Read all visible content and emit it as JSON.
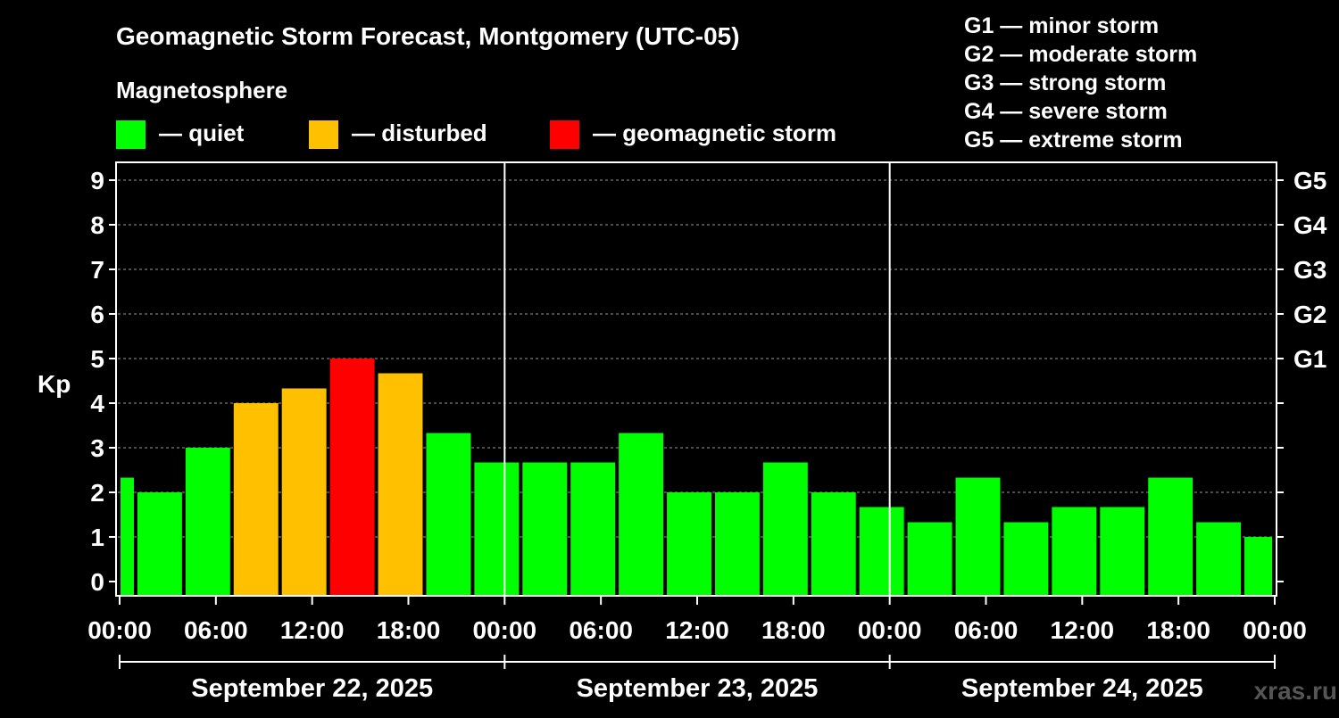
{
  "chart_data": {
    "type": "bar",
    "title": "Geomagnetic Storm Forecast, Montgomery (UTC-05)",
    "legend_title": "Magnetosphere",
    "legend": [
      {
        "label": "— quiet",
        "color": "#00ff00"
      },
      {
        "label": "— disturbed",
        "color": "#ffc000"
      },
      {
        "label": "— geomagnetic storm",
        "color": "#ff0000"
      }
    ],
    "storm_scale": [
      "G1 — minor storm",
      "G2 — moderate storm",
      "G3 — strong storm",
      "G4 — severe storm",
      "G5 — extreme storm"
    ],
    "ylabel": "Kp",
    "ylim": [
      0,
      9
    ],
    "y_ticks": [
      "0",
      "1",
      "2",
      "3",
      "4",
      "5",
      "6",
      "7",
      "8",
      "9"
    ],
    "right_ticks": [
      {
        "value": 5,
        "label": "G1"
      },
      {
        "value": 6,
        "label": "G2"
      },
      {
        "value": 7,
        "label": "G3"
      },
      {
        "value": 8,
        "label": "G4"
      },
      {
        "value": 9,
        "label": "G5"
      }
    ],
    "x_range_hours": [
      0,
      72
    ],
    "x_ticks": [
      "00:00",
      "06:00",
      "12:00",
      "18:00",
      "00:00",
      "06:00",
      "12:00",
      "18:00",
      "00:00",
      "06:00",
      "12:00",
      "18:00",
      "00:00"
    ],
    "days": [
      "September 22, 2025",
      "September 23, 2025",
      "September 24, 2025"
    ],
    "grid": "dashed horizontal at each Kp level",
    "bars": [
      {
        "start": 0,
        "end": 1,
        "kp": 2.33,
        "color": "#00ff00"
      },
      {
        "start": 1,
        "end": 4,
        "kp": 2.0,
        "color": "#00ff00"
      },
      {
        "start": 4,
        "end": 7,
        "kp": 3.0,
        "color": "#00ff00"
      },
      {
        "start": 7,
        "end": 10,
        "kp": 4.0,
        "color": "#ffc000"
      },
      {
        "start": 10,
        "end": 13,
        "kp": 4.33,
        "color": "#ffc000"
      },
      {
        "start": 13,
        "end": 16,
        "kp": 5.0,
        "color": "#ff0000"
      },
      {
        "start": 16,
        "end": 19,
        "kp": 4.67,
        "color": "#ffc000"
      },
      {
        "start": 19,
        "end": 22,
        "kp": 3.33,
        "color": "#00ff00"
      },
      {
        "start": 22,
        "end": 25,
        "kp": 2.67,
        "color": "#00ff00"
      },
      {
        "start": 25,
        "end": 28,
        "kp": 2.67,
        "color": "#00ff00"
      },
      {
        "start": 28,
        "end": 31,
        "kp": 2.67,
        "color": "#00ff00"
      },
      {
        "start": 31,
        "end": 34,
        "kp": 3.33,
        "color": "#00ff00"
      },
      {
        "start": 34,
        "end": 37,
        "kp": 2.0,
        "color": "#00ff00"
      },
      {
        "start": 37,
        "end": 40,
        "kp": 2.0,
        "color": "#00ff00"
      },
      {
        "start": 40,
        "end": 43,
        "kp": 2.67,
        "color": "#00ff00"
      },
      {
        "start": 43,
        "end": 46,
        "kp": 2.0,
        "color": "#00ff00"
      },
      {
        "start": 46,
        "end": 49,
        "kp": 1.67,
        "color": "#00ff00"
      },
      {
        "start": 49,
        "end": 52,
        "kp": 1.33,
        "color": "#00ff00"
      },
      {
        "start": 52,
        "end": 55,
        "kp": 2.33,
        "color": "#00ff00"
      },
      {
        "start": 55,
        "end": 58,
        "kp": 1.33,
        "color": "#00ff00"
      },
      {
        "start": 58,
        "end": 61,
        "kp": 1.67,
        "color": "#00ff00"
      },
      {
        "start": 61,
        "end": 64,
        "kp": 1.67,
        "color": "#00ff00"
      },
      {
        "start": 64,
        "end": 67,
        "kp": 2.33,
        "color": "#00ff00"
      },
      {
        "start": 67,
        "end": 70,
        "kp": 1.33,
        "color": "#00ff00"
      },
      {
        "start": 70,
        "end": 72,
        "kp": 1.0,
        "color": "#00ff00"
      }
    ]
  },
  "watermark": "xras.ru"
}
